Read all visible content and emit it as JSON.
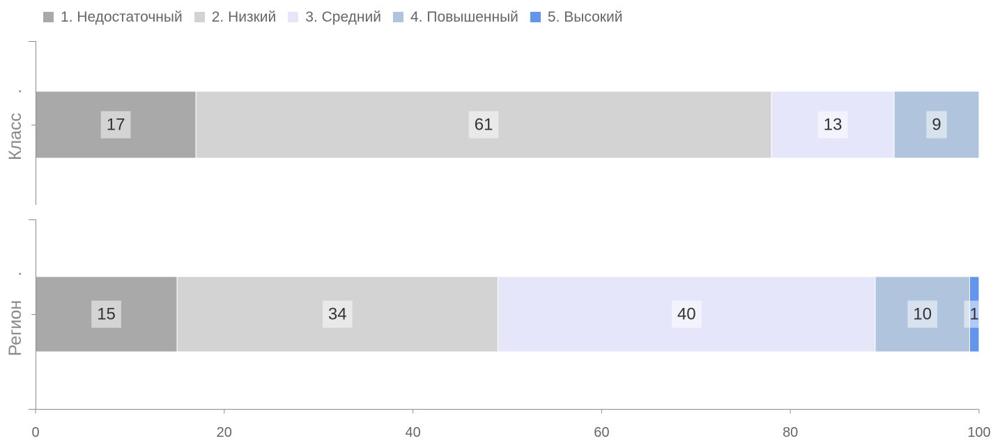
{
  "chart_data": {
    "type": "bar",
    "orientation": "horizontal",
    "stacked": true,
    "categories": [
      "Класс",
      "Регион"
    ],
    "category_marks": [
      ".",
      "."
    ],
    "series": [
      {
        "name": "1. Недостаточный",
        "color": "#a9a9a9",
        "values": [
          17,
          15
        ]
      },
      {
        "name": "2. Низкий",
        "color": "#d3d3d3",
        "values": [
          61,
          34
        ]
      },
      {
        "name": "3. Средний",
        "color": "#e6e6fa",
        "values": [
          13,
          40
        ]
      },
      {
        "name": "4. Повышенный",
        "color": "#b0c4de",
        "values": [
          9,
          10
        ]
      },
      {
        "name": "5. Высокий",
        "color": "#6495ed",
        "values": [
          0,
          1
        ]
      }
    ],
    "xlim": [
      0,
      100
    ],
    "xticks": [
      0,
      20,
      40,
      60,
      80,
      100
    ],
    "grid": false,
    "legend_position": "top-left",
    "data_labels": true
  }
}
